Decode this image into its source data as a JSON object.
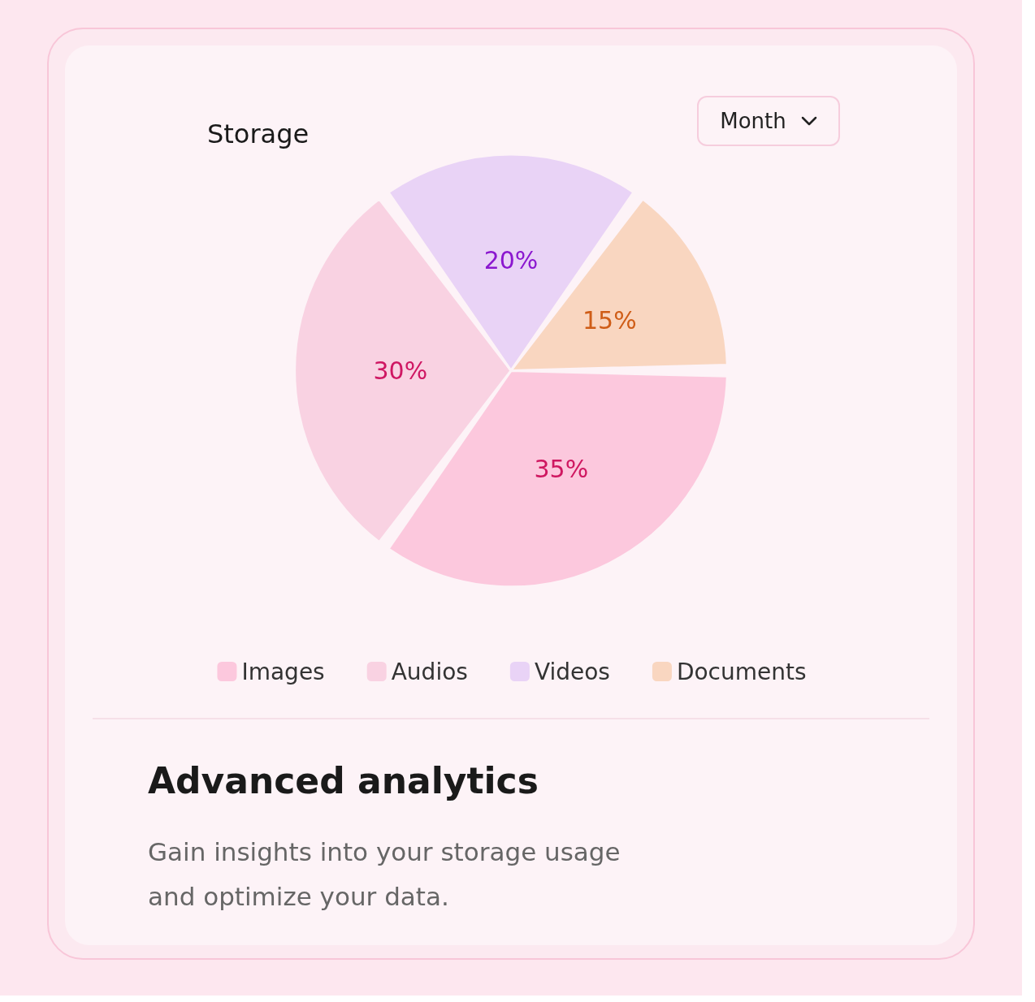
{
  "chart_data": {
    "type": "pie",
    "title": "Storage",
    "categories": [
      "Images",
      "Audios",
      "Videos",
      "Documents"
    ],
    "values": [
      35,
      30,
      20,
      15
    ],
    "colors": [
      "#fcc8dd",
      "#f9d2e2",
      "#e9d3f6",
      "#f9d6c0"
    ],
    "value_labels": [
      "35%",
      "30%",
      "20%",
      "15%"
    ],
    "legend": "bottom",
    "annotations": [
      "Month",
      "Advanced analytics",
      "Gain insights into your storage usage and optimize your data."
    ]
  }
}
